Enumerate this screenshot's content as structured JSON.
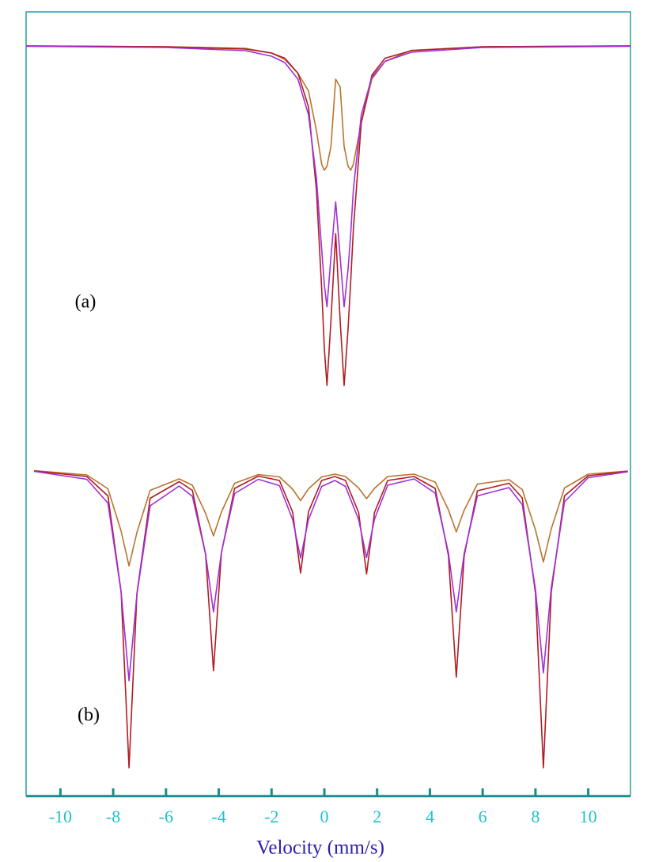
{
  "chart_data": [
    {
      "type": "line",
      "label": "(a)",
      "xlim": [
        -11.3,
        11.6
      ],
      "ylim": [
        0,
        100
      ],
      "x": [
        -11.3,
        -6,
        -3,
        -2,
        -1.5,
        -1,
        -0.6,
        -0.3,
        -0.1,
        0,
        0.1,
        0.25,
        0.43,
        0.6,
        0.75,
        0.9,
        1,
        1.1,
        1.4,
        1.8,
        2.3,
        3.3,
        6,
        11.6
      ],
      "series": [
        {
          "color": "#b8752e",
          "values": [
            91.4,
            91.2,
            90.8,
            89.6,
            88,
            84.5,
            80,
            70,
            61.5,
            60,
            61,
            66,
            83,
            81,
            66,
            61,
            60,
            61.5,
            72,
            83,
            87.5,
            90.3,
            91.2,
            91.4
          ]
        },
        {
          "color": "#b01c22",
          "values": [
            91.4,
            91.2,
            90.6,
            89.6,
            88.3,
            84.5,
            76,
            55,
            30,
            15,
            5.6,
            22,
            44,
            22,
            5.6,
            20,
            32,
            45,
            72,
            84,
            88.3,
            90.2,
            91.2,
            91.4
          ]
        },
        {
          "color": "#a030d8",
          "values": [
            91.3,
            91,
            90.2,
            88.8,
            87.2,
            83,
            74,
            58,
            40,
            31,
            25.5,
            38,
            52,
            38,
            25.5,
            35,
            44,
            55,
            74,
            83.5,
            87.5,
            89.8,
            91,
            91.3
          ]
        }
      ]
    },
    {
      "type": "line",
      "label": "(b)",
      "xlim": [
        -11.3,
        11.6
      ],
      "ylim": [
        0,
        100
      ],
      "xticks": [
        -10,
        -8,
        -6,
        -4,
        -2,
        0,
        2,
        4,
        6,
        8,
        10
      ],
      "xlabel": "Velocity (mm/s)",
      "x": [
        -11,
        -9,
        -8.2,
        -7.7,
        -7.4,
        -7.1,
        -6.6,
        -5.5,
        -5,
        -4.5,
        -4.2,
        -3.9,
        -3.4,
        -2.5,
        -1.7,
        -1.2,
        -0.9,
        -0.6,
        -0.1,
        0.4,
        0.8,
        1.3,
        1.6,
        1.9,
        2.4,
        3.4,
        4.2,
        4.7,
        5,
        5.3,
        5.8,
        7,
        7.5,
        8,
        8.3,
        8.6,
        9.1,
        10,
        11.5
      ],
      "series": [
        {
          "color": "#b8752e",
          "values": [
            82.1,
            81,
            77.5,
            66.8,
            58,
            66.5,
            77.1,
            80,
            78.4,
            71.3,
            65.6,
            71.6,
            78.9,
            81.1,
            80.5,
            77.4,
            74.5,
            77.5,
            80.5,
            81.2,
            80.6,
            77.7,
            75,
            77.6,
            80.6,
            81.2,
            79.2,
            72.2,
            66.6,
            72.1,
            78.7,
            79.8,
            77.3,
            67.1,
            59,
            67.4,
            77.7,
            81.2,
            82
          ]
        },
        {
          "color": "#b01c22",
          "values": [
            82,
            80.6,
            75.7,
            51.5,
            7,
            51.1,
            75.1,
            79.3,
            77.1,
            61,
            31.5,
            61.3,
            77.6,
            80.7,
            79.6,
            71.6,
            56.2,
            71.7,
            79.6,
            80.6,
            79.6,
            71.5,
            56,
            71.5,
            79.6,
            80.6,
            77.6,
            60.7,
            29.9,
            60.6,
            77,
            78.9,
            75.2,
            51.2,
            7,
            51.5,
            75.7,
            80.8,
            81.9
          ]
        },
        {
          "color": "#a030d8",
          "values": [
            81.9,
            79.9,
            73.9,
            51.4,
            29,
            50.9,
            73.2,
            78.2,
            75.6,
            61,
            46.4,
            61.4,
            76.3,
            79.9,
            78.3,
            69.7,
            60,
            69.7,
            78.1,
            79.6,
            78.1,
            69.7,
            60.1,
            69.8,
            78.4,
            80,
            76.4,
            61.4,
            46.4,
            61.2,
            75.7,
            77.8,
            73.5,
            52.1,
            31,
            52.6,
            74.2,
            80.3,
            81.8
          ]
        }
      ]
    }
  ]
}
